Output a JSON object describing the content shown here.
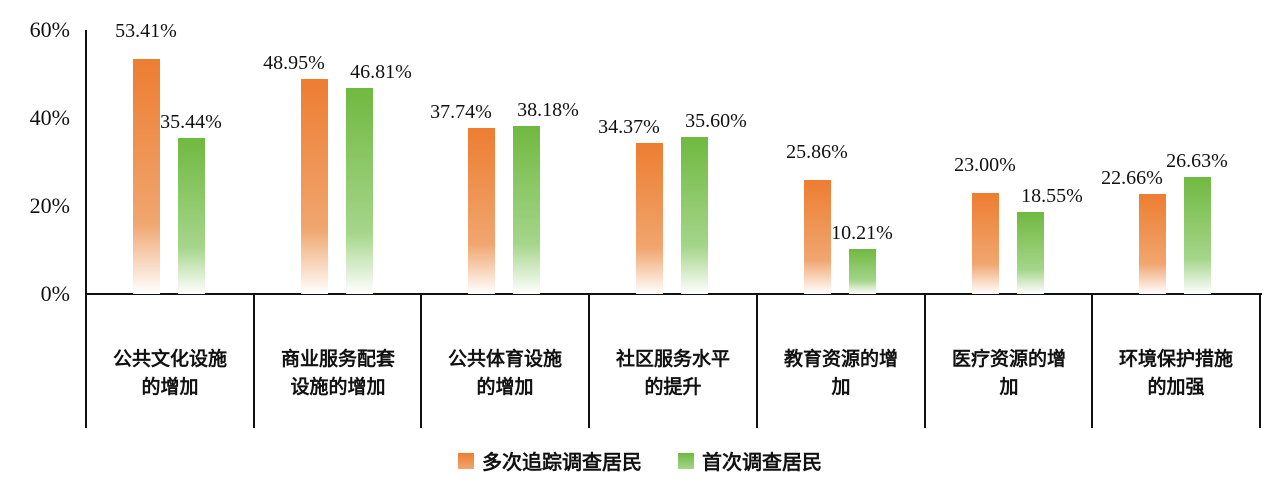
{
  "chart_data": {
    "type": "bar",
    "title": "",
    "xlabel": "",
    "ylabel": "",
    "ylim": [
      0,
      60
    ],
    "yticks": [
      "0%",
      "20%",
      "40%",
      "60%"
    ],
    "grid": false,
    "legend_position": "bottom",
    "categories": [
      "公共文化设施的增加",
      "商业服务配套设施的增加",
      "公共体育设施的增加",
      "社区服务水平的提升",
      "教育资源的增加",
      "医疗资源的增加",
      "环境保护措施的加强"
    ],
    "category_lines": [
      [
        "公共文化设施",
        "的增加"
      ],
      [
        "商业服务配套",
        "设施的增加"
      ],
      [
        "公共体育设施",
        "的增加"
      ],
      [
        "社区服务水平",
        "的提升"
      ],
      [
        "教育资源的增",
        "加"
      ],
      [
        "医疗资源的增",
        "加"
      ],
      [
        "环境保护措施",
        "的加强"
      ]
    ],
    "series": [
      {
        "name": "多次追踪调查居民",
        "color": "#ed7d31",
        "values": [
          53.41,
          48.95,
          37.74,
          34.37,
          25.86,
          23.0,
          22.66
        ],
        "labels": [
          "53.41%",
          "48.95%",
          "37.74%",
          "34.37%",
          "25.86%",
          "23.00%",
          "22.66%"
        ]
      },
      {
        "name": "首次调查居民",
        "color": "#70b940",
        "values": [
          35.44,
          46.81,
          38.18,
          35.6,
          10.21,
          18.55,
          26.63
        ],
        "labels": [
          "35.44%",
          "46.81%",
          "38.18%",
          "35.60%",
          "10.21%",
          "18.55%",
          "26.63%"
        ]
      }
    ]
  }
}
